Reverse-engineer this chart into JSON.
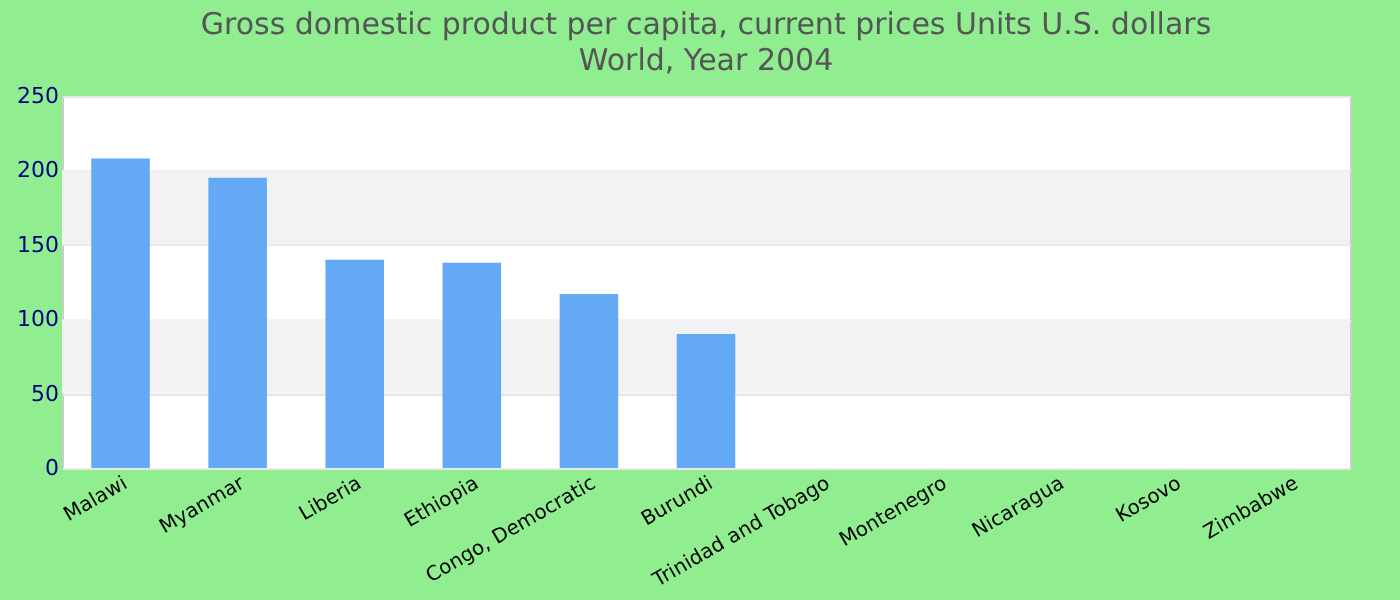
{
  "chart_data": {
    "type": "bar",
    "title": "Gross domestic product per capita, current prices Units U.S. dollars",
    "subtitle": "World, Year 2004",
    "categories": [
      "Malawi",
      "Myanmar",
      "Liberia",
      "Ethiopia",
      "Congo, Democratic",
      "Burundi",
      "Trinidad and Tobago",
      "Montenegro",
      "Nicaragua",
      "Kosovo",
      "Zimbabwe"
    ],
    "values": [
      208,
      195,
      140,
      138,
      117,
      90,
      null,
      null,
      null,
      null,
      null
    ],
    "color": "#63a9f5",
    "ylim": [
      0,
      250
    ],
    "yticks": [
      0,
      50,
      100,
      150,
      200,
      250
    ],
    "grid": "y"
  }
}
